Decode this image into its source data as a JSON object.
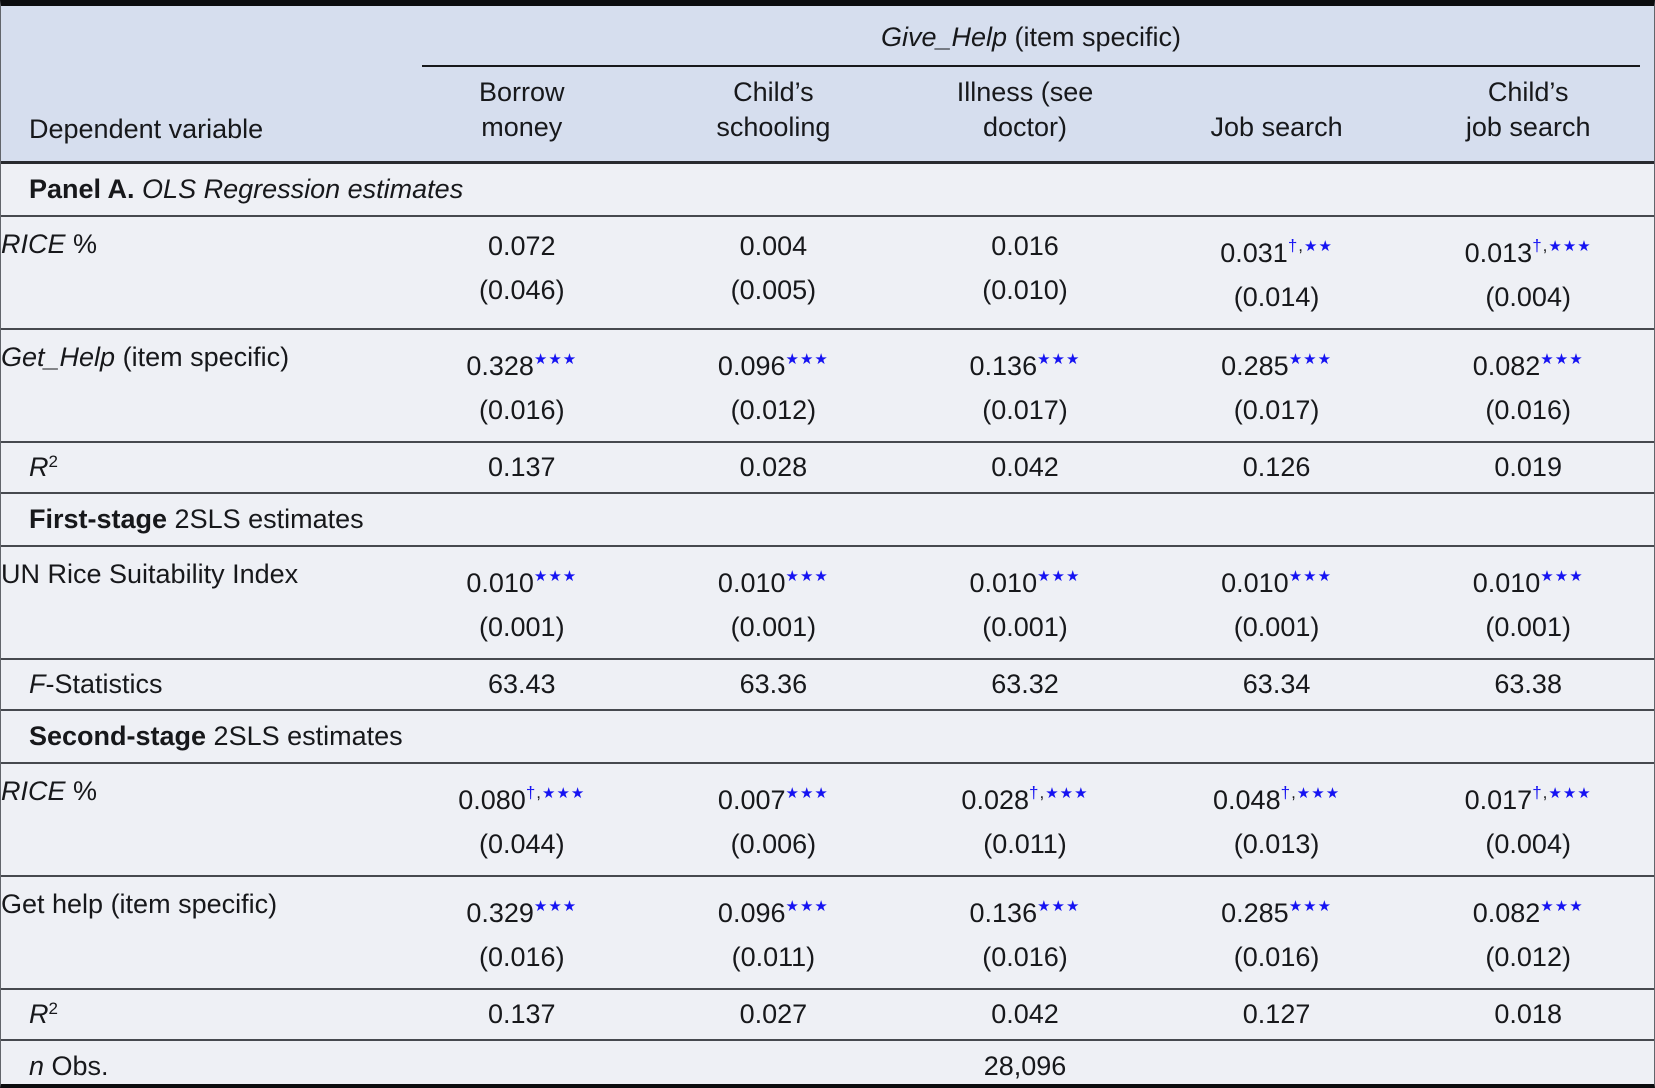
{
  "accent_blue": "#1613f2",
  "header": {
    "span_title_parts": [
      {
        "t": "Give_Help",
        "it": true
      },
      {
        "t": " (item specific)"
      }
    ],
    "dependent_label": "Dependent variable",
    "columns": [
      "Borrow\nmoney",
      "Child’s\nschooling",
      "Illness (see\ndoctor)",
      "Job search",
      "Child’s\njob search"
    ]
  },
  "symbols": {
    "dagger": "†",
    "star": "★",
    "comma": ","
  },
  "rows": [
    {
      "type": "section",
      "parts": [
        {
          "t": "Panel A.",
          "b": true
        },
        {
          "t": " OLS Regression estimates",
          "it": true
        }
      ]
    },
    {
      "type": "coef",
      "label_parts": [
        {
          "t": "RICE",
          "it": true
        },
        {
          "t": " %"
        }
      ],
      "cells": [
        {
          "est": "0.072",
          "dagger": false,
          "stars": 0,
          "se": "(0.046)"
        },
        {
          "est": "0.004",
          "dagger": false,
          "stars": 0,
          "se": "(0.005)"
        },
        {
          "est": "0.016",
          "dagger": false,
          "stars": 0,
          "se": "(0.010)"
        },
        {
          "est": "0.031",
          "dagger": true,
          "stars": 2,
          "se": "(0.014)"
        },
        {
          "est": "0.013",
          "dagger": true,
          "stars": 3,
          "se": "(0.004)"
        }
      ]
    },
    {
      "type": "coef",
      "label_parts": [
        {
          "t": "Get_Help",
          "it": true
        },
        {
          "t": " (item specific)"
        }
      ],
      "cells": [
        {
          "est": "0.328",
          "dagger": false,
          "stars": 3,
          "se": "(0.016)"
        },
        {
          "est": "0.096",
          "dagger": false,
          "stars": 3,
          "se": "(0.012)"
        },
        {
          "est": "0.136",
          "dagger": false,
          "stars": 3,
          "se": "(0.017)"
        },
        {
          "est": "0.285",
          "dagger": false,
          "stars": 3,
          "se": "(0.017)"
        },
        {
          "est": "0.082",
          "dagger": false,
          "stars": 3,
          "se": "(0.016)"
        }
      ]
    },
    {
      "type": "stat",
      "label_parts": [
        {
          "t": "R",
          "it": true
        },
        {
          "t": "2",
          "sup": true
        }
      ],
      "values": [
        "0.137",
        "0.028",
        "0.042",
        "0.126",
        "0.019"
      ]
    },
    {
      "type": "section",
      "parts": [
        {
          "t": "First-stage",
          "b": true
        },
        {
          "t": " 2SLS estimates"
        }
      ]
    },
    {
      "type": "coef",
      "label_parts": [
        {
          "t": "UN Rice Suitability Index"
        }
      ],
      "cells": [
        {
          "est": "0.010",
          "dagger": false,
          "stars": 3,
          "se": "(0.001)"
        },
        {
          "est": "0.010",
          "dagger": false,
          "stars": 3,
          "se": "(0.001)"
        },
        {
          "est": "0.010",
          "dagger": false,
          "stars": 3,
          "se": "(0.001)"
        },
        {
          "est": "0.010",
          "dagger": false,
          "stars": 3,
          "se": "(0.001)"
        },
        {
          "est": "0.010",
          "dagger": false,
          "stars": 3,
          "se": "(0.001)"
        }
      ]
    },
    {
      "type": "stat",
      "label_parts": [
        {
          "t": "F",
          "it": true
        },
        {
          "t": "-Statistics"
        }
      ],
      "values": [
        "63.43",
        "63.36",
        "63.32",
        "63.34",
        "63.38"
      ]
    },
    {
      "type": "section",
      "parts": [
        {
          "t": "Second-stage",
          "b": true
        },
        {
          "t": " 2SLS estimates"
        }
      ]
    },
    {
      "type": "coef",
      "label_parts": [
        {
          "t": "RICE",
          "it": true
        },
        {
          "t": " %"
        }
      ],
      "cells": [
        {
          "est": "0.080",
          "dagger": true,
          "stars": 3,
          "se": "(0.044)"
        },
        {
          "est": "0.007",
          "dagger": false,
          "stars": 3,
          "se": "(0.006)"
        },
        {
          "est": "0.028",
          "dagger": true,
          "stars": 3,
          "se": "(0.011)"
        },
        {
          "est": "0.048",
          "dagger": true,
          "stars": 3,
          "se": "(0.013)"
        },
        {
          "est": "0.017",
          "dagger": true,
          "stars": 3,
          "se": "(0.004)"
        }
      ]
    },
    {
      "type": "coef",
      "label_parts": [
        {
          "t": "Get help (item specific)"
        }
      ],
      "cells": [
        {
          "est": "0.329",
          "dagger": false,
          "stars": 3,
          "se": "(0.016)"
        },
        {
          "est": "0.096",
          "dagger": false,
          "stars": 3,
          "se": "(0.011)"
        },
        {
          "est": "0.136",
          "dagger": false,
          "stars": 3,
          "se": "(0.016)"
        },
        {
          "est": "0.285",
          "dagger": false,
          "stars": 3,
          "se": "(0.016)"
        },
        {
          "est": "0.082",
          "dagger": false,
          "stars": 3,
          "se": "(0.012)"
        }
      ]
    },
    {
      "type": "stat",
      "label_parts": [
        {
          "t": "R",
          "it": true
        },
        {
          "t": "2",
          "sup": true
        }
      ],
      "values": [
        "0.137",
        "0.027",
        "0.042",
        "0.127",
        "0.018"
      ]
    },
    {
      "type": "nobs",
      "label_parts": [
        {
          "t": "n",
          "it": true
        },
        {
          "t": " Obs."
        }
      ],
      "value": "28,096",
      "value_col": 2
    }
  ]
}
